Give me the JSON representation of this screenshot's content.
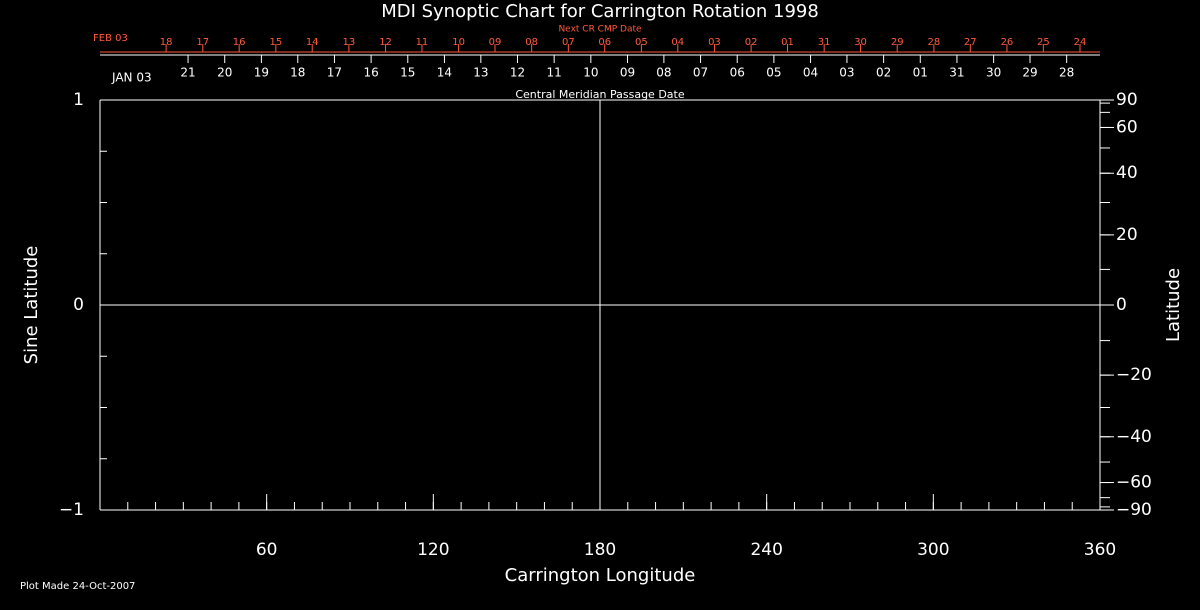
{
  "chart_data": {
    "type": "synoptic",
    "title": "MDI Synoptic Chart for Carrington Rotation 1998",
    "xlabel": "Carrington Longitude",
    "xlim": [
      0,
      360
    ],
    "xticks": [
      60,
      120,
      180,
      240,
      300,
      360
    ],
    "xminor_step": 10,
    "ylabel": "Sine Latitude",
    "ylim": [
      -1,
      1
    ],
    "yticks": [
      {
        "value": -1,
        "label": "−1"
      },
      0,
      1
    ],
    "yminor_step": 0.25,
    "y2label": "Latitude",
    "y2lim": [
      -90,
      90
    ],
    "y2scale": "sine",
    "y2minor_step": 10,
    "y2ticks": [
      {
        "value": -90,
        "label": "−90"
      },
      {
        "value": -60,
        "label": "−60"
      },
      {
        "value": -40,
        "label": "−40"
      },
      {
        "value": -20,
        "label": "−20"
      },
      0,
      20,
      40,
      60,
      90
    ],
    "crosshair": {
      "x": 180,
      "y": 0
    },
    "cmp_axis": {
      "label": "Central Meridian Passage Date",
      "start_label": "JAN 03",
      "color": "#ffffff",
      "dates": [
        "21",
        "20",
        "19",
        "18",
        "17",
        "16",
        "15",
        "14",
        "13",
        "12",
        "11",
        "10",
        "09",
        "08",
        "07",
        "06",
        "05",
        "04",
        "03",
        "02",
        "01",
        "31",
        "30",
        "29",
        "28"
      ],
      "longitudes": [
        31.7,
        44.9,
        58.1,
        71.2,
        84.4,
        97.6,
        110.8,
        124.0,
        137.1,
        150.3,
        163.5,
        176.7,
        189.9,
        203.0,
        216.2,
        229.4,
        242.6,
        255.8,
        268.9,
        282.1,
        295.3,
        308.5,
        321.7,
        334.8,
        348.0
      ]
    },
    "next_axis": {
      "label": "Next CR CMP Date",
      "start_label": "FEB 03",
      "color": "#ff5a3c",
      "dates": [
        "18",
        "17",
        "16",
        "15",
        "14",
        "13",
        "12",
        "11",
        "10",
        "09",
        "08",
        "07",
        "06",
        "05",
        "04",
        "03",
        "02",
        "01",
        "31",
        "30",
        "29",
        "28",
        "27",
        "26",
        "25",
        "24"
      ],
      "longitudes": [
        23.8,
        37.0,
        50.1,
        63.3,
        76.4,
        89.6,
        102.8,
        115.9,
        129.1,
        142.2,
        155.4,
        168.6,
        181.7,
        194.9,
        208.0,
        221.2,
        234.4,
        247.5,
        260.7,
        273.8,
        287.0,
        300.2,
        313.3,
        326.5,
        339.6,
        352.8
      ]
    },
    "footnote": "Plot Made 24-Oct-2007"
  }
}
